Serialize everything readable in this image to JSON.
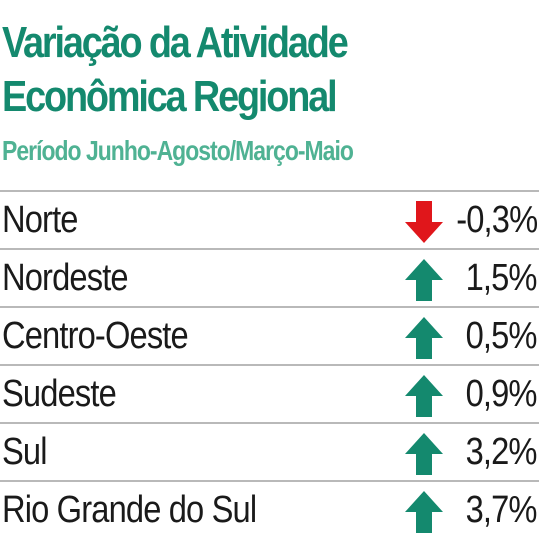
{
  "title_line1": "Variação da Atividade",
  "title_line2": "Econômica Regional",
  "subtitle": "Período Junho-Agosto/Março-Maio",
  "colors": {
    "title": "#14896e",
    "subtitle": "#4fb293",
    "up": "#14896e",
    "down": "#e0161b",
    "divider": "#b9b9b9"
  },
  "chart_data": {
    "type": "table",
    "title": "Variação da Atividade Econômica Regional",
    "subtitle": "Período Junho-Agosto/Março-Maio",
    "unit": "%",
    "rows": [
      {
        "region": "Norte",
        "value": -0.3,
        "display": "-0,3%",
        "direction": "down",
        "icon": "arrow-down-icon"
      },
      {
        "region": "Nordeste",
        "value": 1.5,
        "display": "1,5%",
        "direction": "up",
        "icon": "arrow-up-icon"
      },
      {
        "region": "Centro-Oeste",
        "value": 0.5,
        "display": "0,5%",
        "direction": "up",
        "icon": "arrow-up-icon"
      },
      {
        "region": "Sudeste",
        "value": 0.9,
        "display": "0,9%",
        "direction": "up",
        "icon": "arrow-up-icon"
      },
      {
        "region": "Sul",
        "value": 3.2,
        "display": "3,2%",
        "direction": "up",
        "icon": "arrow-up-icon"
      },
      {
        "region": "Rio Grande do Sul",
        "value": 3.7,
        "display": "3,7%",
        "direction": "up",
        "icon": "arrow-up-icon"
      }
    ]
  }
}
